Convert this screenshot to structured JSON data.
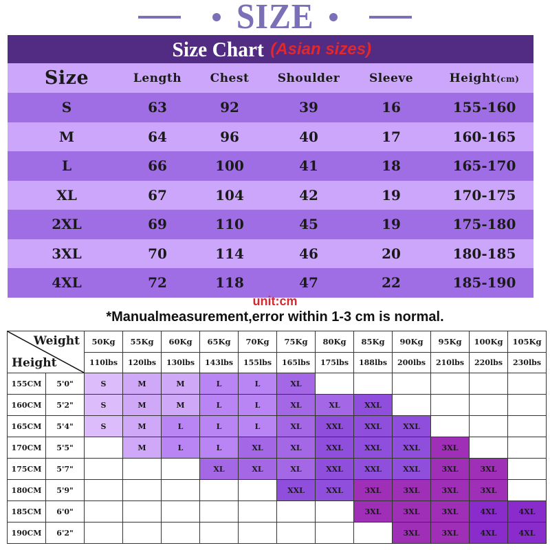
{
  "title": {
    "text": "SIZE",
    "color": "#7b6fb8"
  },
  "size_chart": {
    "heading": "Size Chart",
    "heading_note": "(Asian sizes)",
    "header_bg": "#522b83",
    "columns": [
      "Size",
      "Length",
      "Chest",
      "Shoulder",
      "Sleeve",
      "Height"
    ],
    "height_unit": "(cm)",
    "rows": [
      {
        "size": "S",
        "length": "63",
        "chest": "92",
        "shoulder": "39",
        "sleeve": "16",
        "height": "155-160"
      },
      {
        "size": "M",
        "length": "64",
        "chest": "96",
        "shoulder": "40",
        "sleeve": "17",
        "height": "160-165"
      },
      {
        "size": "L",
        "length": "66",
        "chest": "100",
        "shoulder": "41",
        "sleeve": "18",
        "height": "165-170"
      },
      {
        "size": "XL",
        "length": "67",
        "chest": "104",
        "shoulder": "42",
        "sleeve": "19",
        "height": "170-175"
      },
      {
        "size": "2XL",
        "length": "69",
        "chest": "110",
        "shoulder": "45",
        "sleeve": "19",
        "height": "175-180"
      },
      {
        "size": "3XL",
        "length": "70",
        "chest": "114",
        "shoulder": "46",
        "sleeve": "20",
        "height": "180-185"
      },
      {
        "size": "4XL",
        "length": "72",
        "chest": "118",
        "shoulder": "47",
        "sleeve": "22",
        "height": "185-190"
      }
    ],
    "unit_note": "unit:cm",
    "measurement_note": "*Manualmeasurement,error within 1-3 cm is normal."
  },
  "weight_height_table": {
    "corner_weight_label": "Weight",
    "corner_height_label": "Height",
    "weights_kg": [
      "50Kg",
      "55Kg",
      "60Kg",
      "65Kg",
      "70Kg",
      "75Kg",
      "80Kg",
      "85Kg",
      "90Kg",
      "95Kg",
      "100Kg",
      "105Kg"
    ],
    "weights_lbs": [
      "110lbs",
      "120lbs",
      "130lbs",
      "143lbs",
      "155lbs",
      "165lbs",
      "175lbs",
      "188lbs",
      "200lbs",
      "210lbs",
      "220lbs",
      "230lbs"
    ],
    "rows": [
      {
        "cm": "155CM",
        "ft": "5'0\"",
        "sizes": [
          "S",
          "M",
          "M",
          "L",
          "L",
          "XL",
          "",
          "",
          "",
          "",
          "",
          ""
        ]
      },
      {
        "cm": "160CM",
        "ft": "5'2\"",
        "sizes": [
          "S",
          "M",
          "M",
          "L",
          "L",
          "XL",
          "XL",
          "XXL",
          "",
          "",
          "",
          ""
        ]
      },
      {
        "cm": "165CM",
        "ft": "5'4\"",
        "sizes": [
          "S",
          "M",
          "L",
          "L",
          "L",
          "XL",
          "XXL",
          "XXL",
          "XXL",
          "",
          "",
          ""
        ]
      },
      {
        "cm": "170CM",
        "ft": "5'5\"",
        "sizes": [
          "",
          "M",
          "L",
          "L",
          "XL",
          "XL",
          "XXL",
          "XXL",
          "XXL",
          "3XL",
          "",
          ""
        ]
      },
      {
        "cm": "175CM",
        "ft": "5'7\"",
        "sizes": [
          "",
          "",
          "",
          "XL",
          "XL",
          "XL",
          "XXL",
          "XXL",
          "XXL",
          "3XL",
          "3XL",
          ""
        ]
      },
      {
        "cm": "180CM",
        "ft": "5'9\"",
        "sizes": [
          "",
          "",
          "",
          "",
          "",
          "XXL",
          "XXL",
          "3XL",
          "3XL",
          "3XL",
          "3XL",
          ""
        ]
      },
      {
        "cm": "185CM",
        "ft": "6'0\"",
        "sizes": [
          "",
          "",
          "",
          "",
          "",
          "",
          "",
          "3XL",
          "3XL",
          "3XL",
          "4XL",
          "4XL"
        ]
      },
      {
        "cm": "190CM",
        "ft": "6'2\"",
        "sizes": [
          "",
          "",
          "",
          "",
          "",
          "",
          "",
          "",
          "3XL",
          "3XL",
          "4XL",
          "4XL"
        ]
      }
    ]
  }
}
